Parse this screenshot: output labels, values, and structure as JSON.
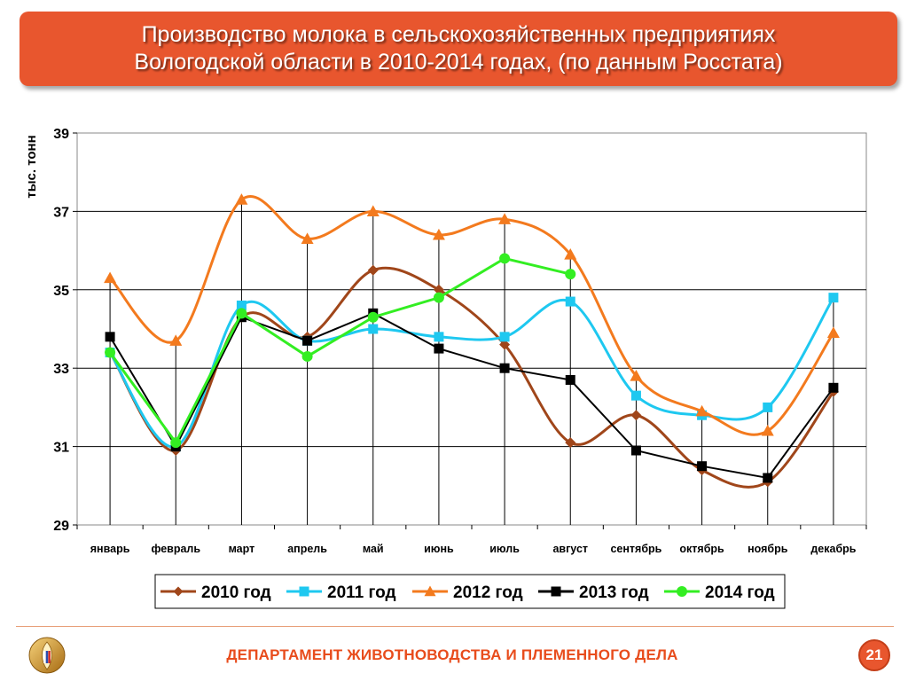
{
  "slide": {
    "title_line1": "Производство молока в сельскохозяйственных предприятиях",
    "title_line2": "Вологодской области в 2010-2014 годах, (по данным Росстата)",
    "department": "ДЕПАРТАМЕНТ ЖИВОТНОВОДСТВА И ПЛЕМЕННОГО ДЕЛА",
    "page_number": "21"
  },
  "chart_data": {
    "type": "line",
    "title": "",
    "ylabel": "тыс. тонн",
    "xlabel": "",
    "ylim": [
      29,
      39
    ],
    "yticks": [
      "29",
      "31",
      "33",
      "35",
      "37",
      "39"
    ],
    "categories": [
      "январь",
      "февраль",
      "март",
      "апрель",
      "май",
      "июнь",
      "июль",
      "август",
      "сентябрь",
      "октябрь",
      "ноябрь",
      "декабрь"
    ],
    "grid": "horizontal",
    "legend": "bottom",
    "series": [
      {
        "name": "2010 год",
        "color": "#a0461a",
        "marker": "diamond",
        "smooth": true,
        "values": [
          33.4,
          30.9,
          34.3,
          33.8,
          35.5,
          35.0,
          33.6,
          31.1,
          31.8,
          30.4,
          30.1,
          32.4
        ]
      },
      {
        "name": "2011 год",
        "color": "#1ec8f0",
        "marker": "square",
        "smooth": true,
        "values": [
          33.4,
          31.0,
          34.6,
          33.7,
          34.0,
          33.8,
          33.8,
          34.7,
          32.3,
          31.8,
          32.0,
          34.8
        ]
      },
      {
        "name": "2012 год",
        "color": "#f37a1e",
        "marker": "triangle",
        "smooth": true,
        "values": [
          35.3,
          33.7,
          37.3,
          36.3,
          37.0,
          36.4,
          36.8,
          35.9,
          32.8,
          31.9,
          31.4,
          33.9
        ]
      },
      {
        "name": "2013 год",
        "color": "#000000",
        "marker": "square",
        "smooth": false,
        "values": [
          33.8,
          31.0,
          34.3,
          33.7,
          34.4,
          33.5,
          33.0,
          32.7,
          30.9,
          30.5,
          30.2,
          32.5
        ]
      },
      {
        "name": "2014 год",
        "color": "#33ee22",
        "marker": "circle",
        "smooth": false,
        "values": [
          33.4,
          31.1,
          34.4,
          33.3,
          34.3,
          34.8,
          35.8,
          35.4,
          null,
          null,
          null,
          null
        ]
      }
    ]
  }
}
